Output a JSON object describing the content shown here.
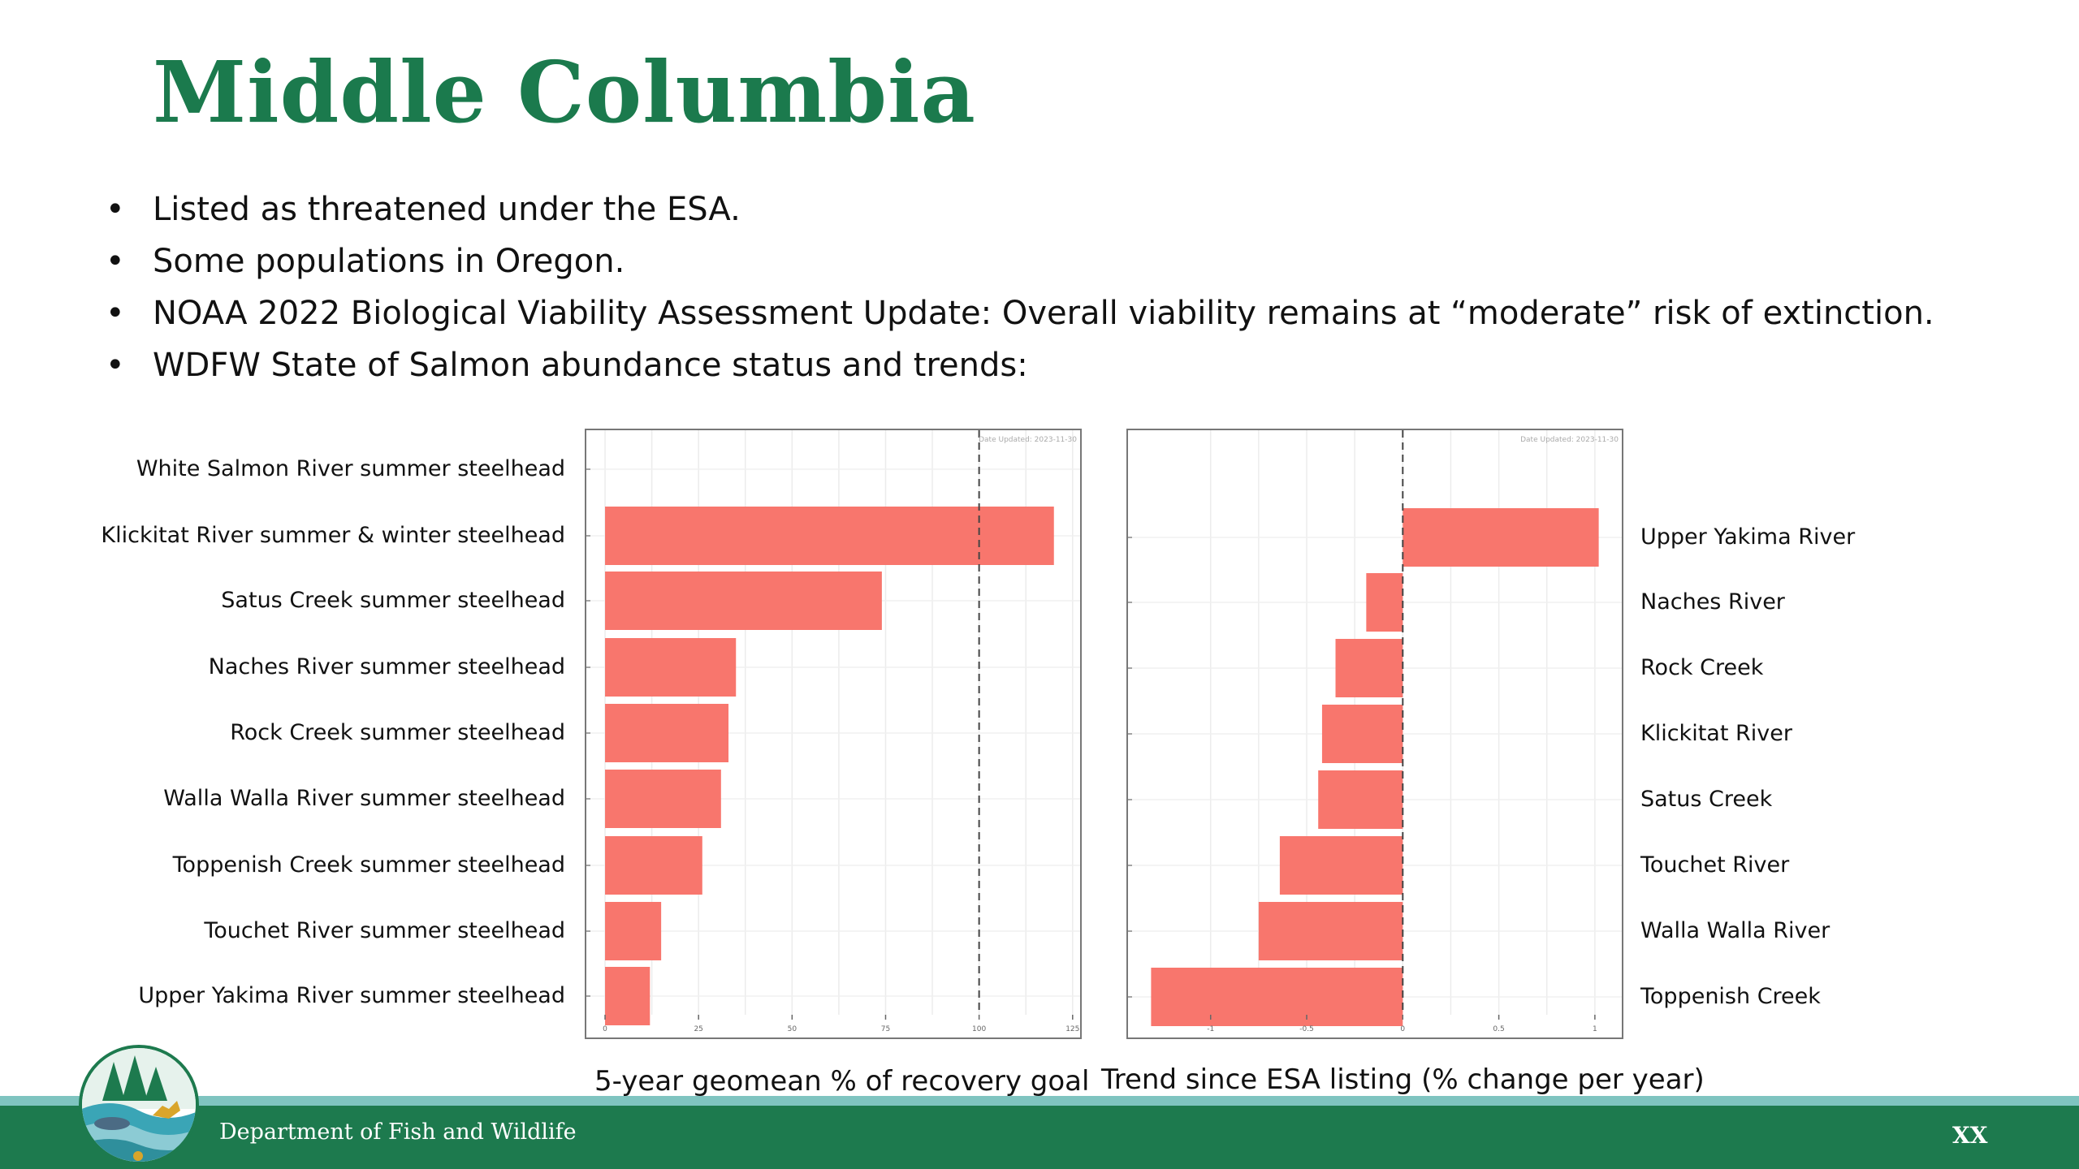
{
  "slide": {
    "title": "Middle Columbia",
    "bullets": [
      "Listed as threatened under the ESA.",
      "Some populations in Oregon.",
      "NOAA 2022 Biological Viability Assessment Update: Overall viability remains at “moderate” risk of extinction.",
      "WDFW State of Salmon abundance status and trends:"
    ],
    "bullet_glyph": "•"
  },
  "footer": {
    "department": "Department of Fish and Wildlife",
    "page_number": "XX"
  },
  "colors": {
    "title": "#1b7a4d",
    "bar": "#f8766d",
    "footer": "#1d7a4e",
    "footer_stripe": "#7fc4c0"
  },
  "icons": {
    "logo": "wdfw-agency-logo"
  },
  "chart_data": [
    {
      "type": "bar",
      "orientation": "horizontal",
      "xlabel": "5-year geomean % of recovery goal",
      "categories": [
        "White Salmon River summer steelhead",
        "Klickitat River summer & winter steelhead",
        "Satus Creek summer steelhead",
        "Naches River summer steelhead",
        "Rock Creek summer steelhead",
        "Walla Walla River summer steelhead",
        "Toppenish Creek summer steelhead",
        "Touchet River summer steelhead",
        "Upper Yakima River summer steelhead"
      ],
      "values": [
        null,
        120,
        74,
        35,
        33,
        31,
        26,
        15,
        12
      ],
      "xlim": [
        -5,
        127
      ],
      "xticks": [
        0,
        25,
        50,
        75,
        100,
        125
      ],
      "reference_line": 100,
      "annotation": "Date Updated: 2023-11-30",
      "grid": true
    },
    {
      "type": "bar",
      "orientation": "horizontal",
      "xlabel": "Trend since ESA listing (% change per year)",
      "categories": [
        "Upper Yakima River",
        "Naches River",
        "Rock Creek",
        "Klickitat River",
        "Satus Creek",
        "Touchet River",
        "Walla Walla River",
        "Toppenish Creek"
      ],
      "values": [
        1.02,
        -0.19,
        -0.35,
        -0.42,
        -0.44,
        -0.64,
        -0.75,
        -1.31
      ],
      "xlim": [
        -1.43,
        1.14
      ],
      "xticks": [
        -1.0,
        -0.5,
        0.0,
        0.5,
        1.0
      ],
      "reference_line": 0,
      "annotation": "Date Updated: 2023-11-30",
      "grid": true
    }
  ]
}
